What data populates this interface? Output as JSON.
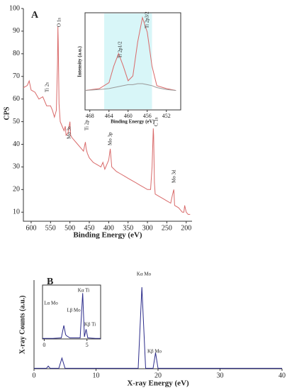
{
  "chart_data": [
    {
      "type": "line",
      "panel": "A",
      "ylabel": "CPS",
      "xlabel": "Binding Energy (eV)",
      "xlim": [
        620,
        185
      ],
      "xticks": [
        600,
        550,
        500,
        450,
        400,
        350,
        300,
        250,
        200
      ],
      "ylim": [
        6,
        100
      ],
      "yticks": [
        10,
        20,
        30,
        40,
        50,
        60,
        70,
        80,
        90,
        100
      ],
      "annotations": [
        "O 1s",
        "Ti 2s",
        "Mo 3s",
        "Ti 2p",
        "Mo 3p",
        "C 1s",
        "Mo 3d"
      ],
      "x": [
        620,
        610,
        605,
        600,
        590,
        580,
        570,
        560,
        550,
        545,
        540,
        535,
        532,
        531,
        530,
        528,
        525,
        520,
        515,
        512,
        510,
        505,
        500,
        498,
        495,
        490,
        480,
        470,
        465,
        460,
        458,
        455,
        450,
        440,
        430,
        420,
        415,
        410,
        400,
        396,
        392,
        380,
        370,
        360,
        350,
        340,
        330,
        320,
        310,
        300,
        292,
        288,
        285,
        284,
        282,
        280,
        270,
        260,
        250,
        240,
        235,
        232,
        230,
        220,
        210,
        206,
        204,
        200,
        195,
        190
      ],
      "series": [
        {
          "color": "#d96a6a",
          "values": [
            65,
            66,
            68,
            64,
            63,
            60,
            61,
            57,
            57,
            55,
            52,
            55,
            75,
            92,
            85,
            58,
            50,
            48,
            46,
            48,
            44,
            45,
            50,
            44,
            43,
            42,
            40,
            38,
            37,
            41,
            38,
            36,
            34,
            32,
            31,
            30,
            32,
            29,
            33,
            38,
            30,
            28,
            27,
            26,
            25,
            24,
            23,
            22,
            21,
            20,
            20,
            30,
            47,
            44,
            23,
            18,
            17,
            16,
            15,
            14,
            18,
            20,
            13,
            12,
            10,
            10,
            13,
            10,
            9,
            9
          ]
        }
      ]
    },
    {
      "type": "line",
      "ylabel": "Intensity (a.u.)",
      "xlabel": "Binding Energy (eV)",
      "xlim": [
        469,
        449
      ],
      "xticks": [
        468,
        464,
        460,
        456,
        452
      ],
      "ylim": [
        0,
        100
      ],
      "shade": [
        465,
        455
      ],
      "shade_color": "#d8f6f8",
      "annotations": [
        "Ti 2p1/2",
        "Ti 2p3/2"
      ],
      "x": [
        469,
        466,
        464,
        463,
        462,
        461,
        460,
        459,
        458,
        457,
        456,
        455,
        454,
        452,
        450
      ],
      "series": [
        {
          "color": "#d96a6a",
          "values": [
            20,
            22,
            28,
            45,
            58,
            45,
            30,
            35,
            70,
            95,
            80,
            45,
            25,
            22,
            20
          ]
        },
        {
          "color": "#999999",
          "values": [
            20,
            21,
            22,
            23,
            24,
            25,
            26,
            26,
            27,
            27,
            26,
            25,
            23,
            21,
            20
          ]
        }
      ]
    },
    {
      "type": "line",
      "panel": "B",
      "ylabel": "X-ray Counts (a.u.)",
      "xlabel": "X-ray Energy (eV)",
      "xlim": [
        0,
        40
      ],
      "xticks": [
        0,
        10,
        20,
        30,
        40
      ],
      "ylim": [
        0,
        100
      ],
      "annotations": [
        "Kα Mo",
        "Kβ Mo"
      ],
      "x": [
        0,
        2,
        2.3,
        2.6,
        4,
        4.5,
        5,
        10,
        16.8,
        17.4,
        18,
        19.2,
        19.6,
        20,
        25,
        30,
        40
      ],
      "series": [
        {
          "color": "#2b2b8a",
          "values": [
            0.5,
            0.5,
            3,
            0.5,
            0.5,
            12,
            0.5,
            0.5,
            0.5,
            92,
            0.5,
            0.5,
            18,
            0.5,
            0.5,
            0.5,
            0.5
          ]
        }
      ]
    },
    {
      "type": "line",
      "xlim": [
        -0.2,
        6.6
      ],
      "xticks": [
        0,
        5
      ],
      "ylim": [
        0,
        100
      ],
      "annotations": [
        "Kα Ti",
        "Lα Mo",
        "Lβ Mo",
        "Kβ Ti"
      ],
      "x": [
        -0.2,
        1,
        2,
        2.3,
        2.5,
        2.6,
        3,
        4.2,
        4.5,
        4.7,
        4.9,
        5.1,
        6,
        6.6
      ],
      "series": [
        {
          "color": "#2b2b8a",
          "values": [
            1,
            1,
            2,
            25,
            8,
            6,
            2,
            2,
            85,
            4,
            18,
            2,
            1,
            1
          ]
        }
      ]
    }
  ]
}
